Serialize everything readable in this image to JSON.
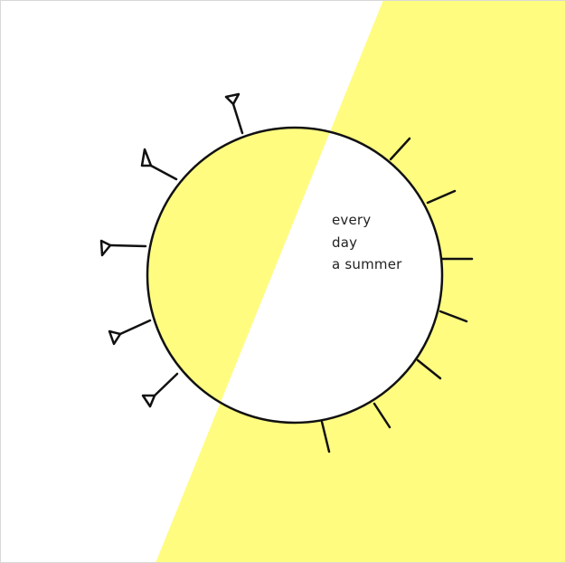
{
  "colors": {
    "background": "#ffffff",
    "sun_yellow": "#fffc80",
    "ink": "#111111"
  },
  "artwork": {
    "icon": "sun-drawing",
    "text_lines": [
      "every",
      "day",
      "a summer"
    ]
  }
}
